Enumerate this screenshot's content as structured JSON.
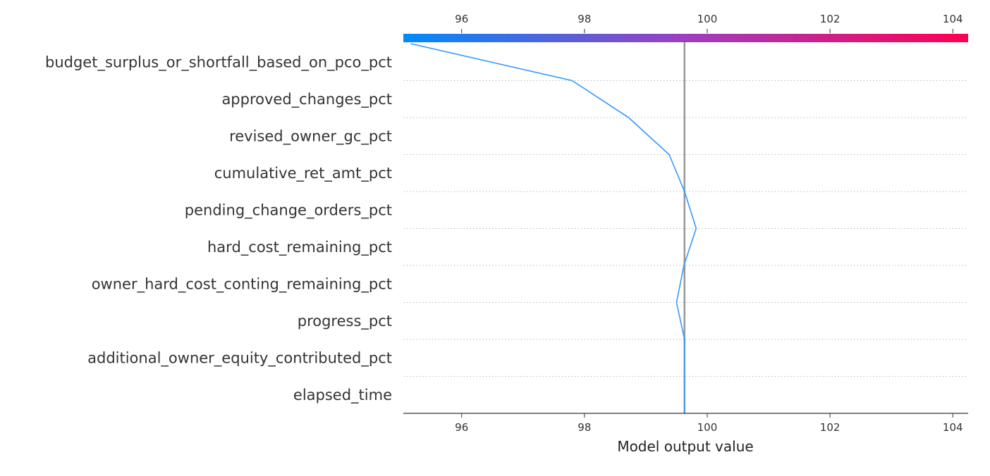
{
  "chart_data": {
    "type": "line",
    "plot_kind": "decision plot",
    "title": "",
    "xlabel": "Model output value",
    "ylabel": "",
    "xlim": [
      95.05,
      104.25
    ],
    "x_ticks": [
      96,
      98,
      100,
      102,
      104
    ],
    "x_tick_labels": [
      "96",
      "98",
      "100",
      "102",
      "104"
    ],
    "features": [
      "budget_surplus_or_shortfall_based_on_pco_pct",
      "approved_changes_pct",
      "revised_owner_gc_pct",
      "cumulative_ret_amt_pct",
      "pending_change_orders_pct",
      "hard_cost_remaining_pct",
      "owner_hard_cost_conting_remaining_pct",
      "progress_pct",
      "additional_owner_equity_contributed_pct",
      "elapsed_time"
    ],
    "base_value": 99.63,
    "series": [
      {
        "values": [
          95.17,
          97.8,
          98.72,
          99.38,
          99.63,
          99.82,
          99.62,
          99.5,
          99.63,
          99.63,
          99.63
        ]
      }
    ],
    "grid": "dotted horizontal lines between features",
    "colorbar": {
      "position": "top",
      "from": "#008bfb",
      "mid": "#9c3fbf",
      "to": "#ff0052"
    },
    "colors": {
      "line": "#3399ff",
      "base_line": "#999999",
      "text": "#333333"
    }
  }
}
